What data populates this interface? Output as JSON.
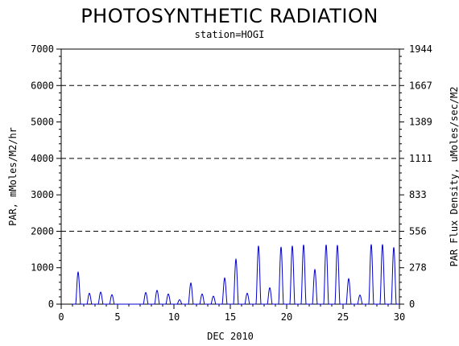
{
  "chart_data": {
    "type": "line",
    "title": "PHOTOSYNTHETIC RADIATION",
    "subtitle": "station=HOGI",
    "xlabel": "DEC 2010",
    "ylabel": "PAR, mMoles/M2/hr",
    "y2label": "PAR Flux Density, uMoles/sec/M2",
    "xlim": [
      0,
      30
    ],
    "ylim": [
      0,
      7000
    ],
    "y2lim": [
      0,
      1944
    ],
    "x_ticks": [
      "0",
      "5",
      "10",
      "15",
      "20",
      "25",
      "30"
    ],
    "y_ticks": [
      "0",
      "1000",
      "2000",
      "3000",
      "4000",
      "5000",
      "6000",
      "7000"
    ],
    "y2_ticks": [
      "0",
      "278",
      "556",
      "833",
      "1111",
      "1389",
      "1667",
      "1944"
    ],
    "gridlines_y": [
      2000,
      4000,
      6000
    ],
    "grid_style": "dashed",
    "line_color": "#0000cc",
    "daily_peaks": [
      {
        "day": 1,
        "value": 880
      },
      {
        "day": 2,
        "value": 300
      },
      {
        "day": 3,
        "value": 330
      },
      {
        "day": 4,
        "value": 260
      },
      {
        "day": 5,
        "value": 0
      },
      {
        "day": 6,
        "value": 0
      },
      {
        "day": 7,
        "value": 320
      },
      {
        "day": 8,
        "value": 380
      },
      {
        "day": 9,
        "value": 280
      },
      {
        "day": 10,
        "value": 120
      },
      {
        "day": 11,
        "value": 580
      },
      {
        "day": 12,
        "value": 280
      },
      {
        "day": 13,
        "value": 220
      },
      {
        "day": 14,
        "value": 720
      },
      {
        "day": 15,
        "value": 1230
      },
      {
        "day": 16,
        "value": 300
      },
      {
        "day": 17,
        "value": 1600
      },
      {
        "day": 18,
        "value": 450
      },
      {
        "day": 19,
        "value": 1570
      },
      {
        "day": 20,
        "value": 1600
      },
      {
        "day": 21,
        "value": 1630
      },
      {
        "day": 22,
        "value": 950
      },
      {
        "day": 23,
        "value": 1630
      },
      {
        "day": 24,
        "value": 1620
      },
      {
        "day": 25,
        "value": 700
      },
      {
        "day": 26,
        "value": 250
      },
      {
        "day": 27,
        "value": 1640
      },
      {
        "day": 28,
        "value": 1640
      },
      {
        "day": 29,
        "value": 1560
      }
    ]
  }
}
